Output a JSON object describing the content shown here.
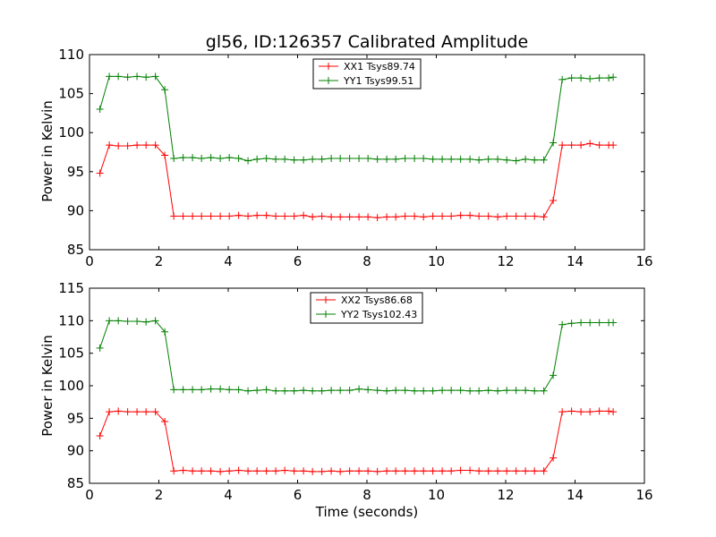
{
  "chart_data": [
    {
      "type": "line",
      "title": "gl56, ID:126357 Calibrated Amplitude",
      "xlabel": "",
      "ylabel": "Power in Kelvin",
      "xlim": [
        0,
        16
      ],
      "ylim": [
        85,
        110
      ],
      "xticks": [
        0,
        2,
        4,
        6,
        8,
        10,
        12,
        14,
        16
      ],
      "yticks": [
        85,
        90,
        95,
        100,
        105,
        110
      ],
      "grid": false,
      "legend_position": "top-center",
      "series": [
        {
          "name": "XX1 Tsys89.74",
          "color": "#ff0000",
          "x": [
            0.3,
            0.57,
            0.83,
            1.1,
            1.37,
            1.63,
            1.9,
            2.17,
            2.43,
            2.7,
            2.97,
            3.23,
            3.5,
            3.77,
            4.03,
            4.3,
            4.57,
            4.83,
            5.1,
            5.37,
            5.63,
            5.9,
            6.17,
            6.43,
            6.7,
            6.97,
            7.23,
            7.5,
            7.77,
            8.03,
            8.3,
            8.57,
            8.83,
            9.1,
            9.37,
            9.63,
            9.9,
            10.17,
            10.43,
            10.7,
            10.97,
            11.23,
            11.5,
            11.77,
            12.03,
            12.3,
            12.57,
            12.83,
            13.1,
            13.37,
            13.63,
            13.9,
            14.17,
            14.43,
            14.7,
            14.97,
            15.1
          ],
          "y": [
            94.8,
            98.4,
            98.3,
            98.3,
            98.4,
            98.4,
            98.4,
            97.1,
            89.3,
            89.3,
            89.3,
            89.3,
            89.3,
            89.3,
            89.3,
            89.4,
            89.3,
            89.4,
            89.4,
            89.3,
            89.3,
            89.3,
            89.4,
            89.2,
            89.3,
            89.2,
            89.2,
            89.2,
            89.2,
            89.2,
            89.1,
            89.2,
            89.2,
            89.3,
            89.3,
            89.2,
            89.3,
            89.3,
            89.3,
            89.4,
            89.4,
            89.3,
            89.3,
            89.2,
            89.3,
            89.3,
            89.3,
            89.3,
            89.2,
            91.3,
            98.4,
            98.4,
            98.4,
            98.6,
            98.4,
            98.4,
            98.4
          ]
        },
        {
          "name": "YY1 Tsys99.51",
          "color": "#008000",
          "x": [
            0.3,
            0.57,
            0.83,
            1.1,
            1.37,
            1.63,
            1.9,
            2.17,
            2.43,
            2.7,
            2.97,
            3.23,
            3.5,
            3.77,
            4.03,
            4.3,
            4.57,
            4.83,
            5.1,
            5.37,
            5.63,
            5.9,
            6.17,
            6.43,
            6.7,
            6.97,
            7.23,
            7.5,
            7.77,
            8.03,
            8.3,
            8.57,
            8.83,
            9.1,
            9.37,
            9.63,
            9.9,
            10.17,
            10.43,
            10.7,
            10.97,
            11.23,
            11.5,
            11.77,
            12.03,
            12.3,
            12.57,
            12.83,
            13.1,
            13.37,
            13.63,
            13.9,
            14.17,
            14.43,
            14.7,
            14.97,
            15.1
          ],
          "y": [
            103.0,
            107.2,
            107.2,
            107.1,
            107.2,
            107.1,
            107.2,
            105.5,
            96.7,
            96.8,
            96.8,
            96.7,
            96.8,
            96.7,
            96.8,
            96.7,
            96.4,
            96.6,
            96.7,
            96.6,
            96.6,
            96.5,
            96.5,
            96.6,
            96.6,
            96.7,
            96.7,
            96.7,
            96.7,
            96.7,
            96.6,
            96.6,
            96.6,
            96.7,
            96.7,
            96.7,
            96.6,
            96.6,
            96.6,
            96.6,
            96.6,
            96.5,
            96.6,
            96.6,
            96.5,
            96.4,
            96.6,
            96.5,
            96.5,
            98.7,
            106.8,
            107.0,
            107.0,
            106.9,
            107.0,
            107.0,
            107.1
          ]
        }
      ]
    },
    {
      "type": "line",
      "title": "",
      "xlabel": "Time (seconds)",
      "ylabel": "Power in Kelvin",
      "xlim": [
        0,
        16
      ],
      "ylim": [
        85,
        115
      ],
      "xticks": [
        0,
        2,
        4,
        6,
        8,
        10,
        12,
        14,
        16
      ],
      "yticks": [
        85,
        90,
        95,
        100,
        105,
        110,
        115
      ],
      "grid": false,
      "legend_position": "top-center",
      "series": [
        {
          "name": "XX2 Tsys86.68",
          "color": "#ff0000",
          "x": [
            0.3,
            0.57,
            0.83,
            1.1,
            1.37,
            1.63,
            1.9,
            2.17,
            2.43,
            2.7,
            2.97,
            3.23,
            3.5,
            3.77,
            4.03,
            4.3,
            4.57,
            4.83,
            5.1,
            5.37,
            5.63,
            5.9,
            6.17,
            6.43,
            6.7,
            6.97,
            7.23,
            7.5,
            7.77,
            8.03,
            8.3,
            8.57,
            8.83,
            9.1,
            9.37,
            9.63,
            9.9,
            10.17,
            10.43,
            10.7,
            10.97,
            11.23,
            11.5,
            11.77,
            12.03,
            12.3,
            12.57,
            12.83,
            13.1,
            13.37,
            13.63,
            13.9,
            14.17,
            14.43,
            14.7,
            14.97,
            15.1
          ],
          "y": [
            92.3,
            96.0,
            96.1,
            96.0,
            96.0,
            96.0,
            96.0,
            94.5,
            86.9,
            87.0,
            86.9,
            86.9,
            86.9,
            86.8,
            86.9,
            87.0,
            86.9,
            86.9,
            86.9,
            86.9,
            87.0,
            86.9,
            86.9,
            86.8,
            86.8,
            86.9,
            86.8,
            86.9,
            86.9,
            86.9,
            86.8,
            86.9,
            86.9,
            86.9,
            86.9,
            86.9,
            86.9,
            86.9,
            86.9,
            87.0,
            87.0,
            86.9,
            86.9,
            86.9,
            86.9,
            86.9,
            86.9,
            86.9,
            86.9,
            88.9,
            96.0,
            96.1,
            96.0,
            96.0,
            96.1,
            96.1,
            96.0
          ]
        },
        {
          "name": "YY2 Tsys102.43",
          "color": "#008000",
          "x": [
            0.3,
            0.57,
            0.83,
            1.1,
            1.37,
            1.63,
            1.9,
            2.17,
            2.43,
            2.7,
            2.97,
            3.23,
            3.5,
            3.77,
            4.03,
            4.3,
            4.57,
            4.83,
            5.1,
            5.37,
            5.63,
            5.9,
            6.17,
            6.43,
            6.7,
            6.97,
            7.23,
            7.5,
            7.77,
            8.03,
            8.3,
            8.57,
            8.83,
            9.1,
            9.37,
            9.63,
            9.9,
            10.17,
            10.43,
            10.7,
            10.97,
            11.23,
            11.5,
            11.77,
            12.03,
            12.3,
            12.57,
            12.83,
            13.1,
            13.37,
            13.63,
            13.9,
            14.17,
            14.43,
            14.7,
            14.97,
            15.1
          ],
          "y": [
            105.8,
            110.0,
            110.0,
            109.9,
            109.9,
            109.8,
            110.0,
            108.3,
            99.4,
            99.4,
            99.4,
            99.4,
            99.5,
            99.5,
            99.4,
            99.4,
            99.2,
            99.3,
            99.4,
            99.2,
            99.2,
            99.2,
            99.3,
            99.2,
            99.2,
            99.3,
            99.3,
            99.3,
            99.5,
            99.4,
            99.3,
            99.2,
            99.3,
            99.3,
            99.2,
            99.2,
            99.2,
            99.3,
            99.3,
            99.3,
            99.2,
            99.2,
            99.3,
            99.2,
            99.3,
            99.3,
            99.3,
            99.2,
            99.2,
            101.6,
            109.4,
            109.6,
            109.7,
            109.7,
            109.7,
            109.7,
            109.7
          ]
        }
      ]
    }
  ]
}
